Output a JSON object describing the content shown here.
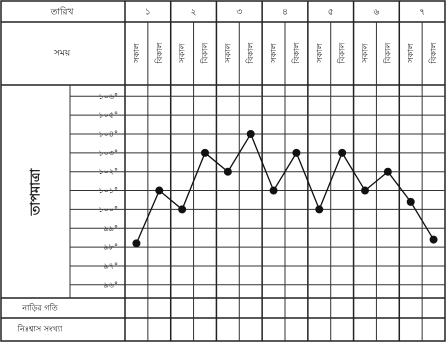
{
  "chart_data": {
    "type": "line",
    "date_label": "তারিখ",
    "time_label": "সময়",
    "y_label": "তাপমাত্রা",
    "pulse_label": "নাড়ির গতি",
    "respiration_label": "নিঃশ্বাস সংখ্যা",
    "dates": [
      "১",
      "২",
      "৩",
      "৪",
      "৫",
      "৬",
      "৭"
    ],
    "categories": [
      "সকাল",
      "বিকাল",
      "সকাল",
      "বিকাল",
      "সকাল",
      "বিকাল",
      "সকাল",
      "বিকাল",
      "সকাল",
      "বিকাল",
      "সকাল",
      "বিকাল",
      "সকাল",
      "বিকাল"
    ],
    "values": [
      98.2,
      101,
      100,
      103,
      102,
      104,
      101,
      103,
      100,
      103,
      101,
      102,
      100.4,
      98.4
    ],
    "color": "#111111",
    "ylim": [
      95.3,
      106.6
    ],
    "yticks": [
      {
        "value": 106,
        "label": "১০৬°"
      },
      {
        "value": 105,
        "label": "১০৫°"
      },
      {
        "value": 104,
        "label": "১০৪°"
      },
      {
        "value": 103,
        "label": "১০৩°"
      },
      {
        "value": 102,
        "label": "১০২°"
      },
      {
        "value": 101,
        "label": "১০১°"
      },
      {
        "value": 100,
        "label": "১০০°"
      },
      {
        "value": 99,
        "label": "৯৯°"
      },
      {
        "value": 98,
        "label": "৯৮°"
      },
      {
        "value": 97,
        "label": "৯৭°"
      },
      {
        "value": 96,
        "label": "৯৬°"
      }
    ],
    "grid": true
  }
}
